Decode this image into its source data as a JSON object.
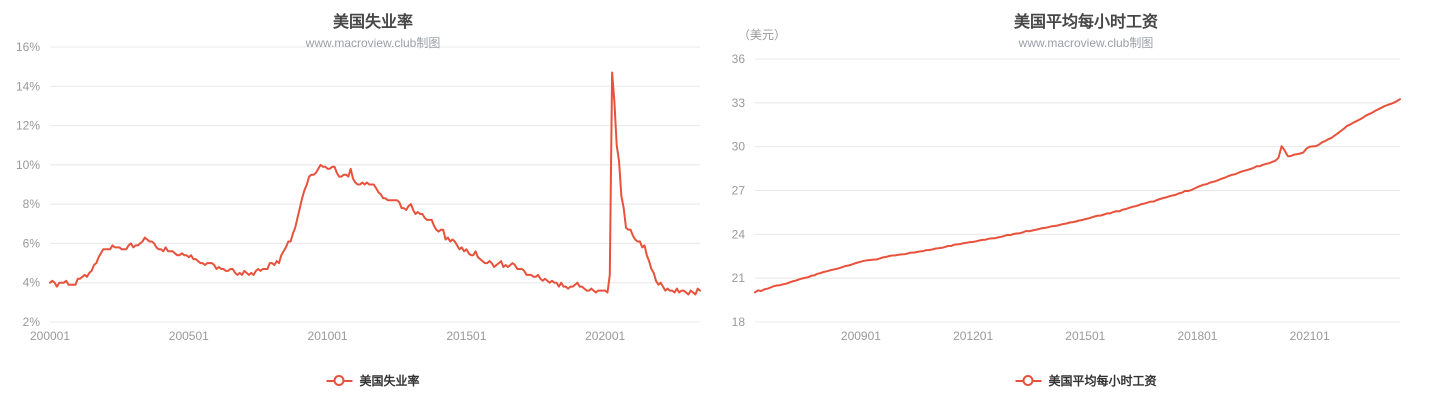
{
  "page": {
    "background": "#ffffff"
  },
  "colors": {
    "line": "#e8523c",
    "grid_line": "#e8e8e8",
    "axis_label": "#999999",
    "title": "#464646",
    "subtitle": "#9aa0a6",
    "legend_text": "#333333"
  },
  "chart_data": [
    {
      "type": "line",
      "title": "美国失业率",
      "subtitle": "www.macroview.club制图",
      "legend": "美国失业率",
      "unit_label": "",
      "line_color": "#e8523c",
      "grid": true,
      "legend_position": "bottom-center",
      "ylim": [
        2,
        16
      ],
      "y_tick_values": [
        2,
        4,
        6,
        8,
        10,
        12,
        14,
        16
      ],
      "y_tick_labels": [
        "2%",
        "4%",
        "6%",
        "8%",
        "10%",
        "12%",
        "14%",
        "16%"
      ],
      "x_start": "2000-01",
      "x_freq": "monthly",
      "x_tick_labels": [
        "200001",
        "200501",
        "201001",
        "201501",
        "202001"
      ],
      "values": [
        4.0,
        4.1,
        4.0,
        3.8,
        4.0,
        4.0,
        4.0,
        4.1,
        3.9,
        3.9,
        3.9,
        3.9,
        4.2,
        4.2,
        4.3,
        4.4,
        4.3,
        4.5,
        4.6,
        4.9,
        5.0,
        5.3,
        5.5,
        5.7,
        5.7,
        5.7,
        5.7,
        5.9,
        5.8,
        5.8,
        5.8,
        5.7,
        5.7,
        5.7,
        5.9,
        6.0,
        5.8,
        5.9,
        5.9,
        6.0,
        6.1,
        6.3,
        6.2,
        6.1,
        6.1,
        6.0,
        5.8,
        5.7,
        5.7,
        5.6,
        5.8,
        5.6,
        5.6,
        5.6,
        5.5,
        5.4,
        5.4,
        5.5,
        5.4,
        5.4,
        5.3,
        5.4,
        5.2,
        5.2,
        5.1,
        5.0,
        5.0,
        4.9,
        5.0,
        5.0,
        5.0,
        4.9,
        4.7,
        4.8,
        4.7,
        4.7,
        4.6,
        4.6,
        4.7,
        4.7,
        4.5,
        4.4,
        4.5,
        4.4,
        4.6,
        4.5,
        4.4,
        4.5,
        4.4,
        4.6,
        4.7,
        4.6,
        4.7,
        4.7,
        4.7,
        5.0,
        5.0,
        4.9,
        5.1,
        5.0,
        5.4,
        5.6,
        5.8,
        6.1,
        6.1,
        6.5,
        6.8,
        7.3,
        7.8,
        8.3,
        8.7,
        9.0,
        9.4,
        9.5,
        9.5,
        9.6,
        9.8,
        10.0,
        9.9,
        9.9,
        9.8,
        9.8,
        9.9,
        9.9,
        9.6,
        9.4,
        9.4,
        9.5,
        9.5,
        9.4,
        9.8,
        9.3,
        9.1,
        9.0,
        9.0,
        9.1,
        9.0,
        9.1,
        9.0,
        9.0,
        9.0,
        8.8,
        8.6,
        8.5,
        8.3,
        8.3,
        8.2,
        8.2,
        8.2,
        8.2,
        8.2,
        8.1,
        7.8,
        7.8,
        7.7,
        7.9,
        8.0,
        7.7,
        7.5,
        7.6,
        7.5,
        7.5,
        7.3,
        7.2,
        7.2,
        7.2,
        6.9,
        6.7,
        6.6,
        6.7,
        6.7,
        6.2,
        6.3,
        6.1,
        6.2,
        6.1,
        5.9,
        5.7,
        5.8,
        5.6,
        5.7,
        5.5,
        5.4,
        5.4,
        5.6,
        5.3,
        5.2,
        5.1,
        5.0,
        5.0,
        5.1,
        5.0,
        4.8,
        4.9,
        5.0,
        5.1,
        4.8,
        4.9,
        4.8,
        4.9,
        5.0,
        4.9,
        4.7,
        4.7,
        4.7,
        4.6,
        4.4,
        4.4,
        4.4,
        4.3,
        4.3,
        4.4,
        4.2,
        4.1,
        4.2,
        4.1,
        4.0,
        4.1,
        4.0,
        4.0,
        3.8,
        4.0,
        3.8,
        3.8,
        3.7,
        3.8,
        3.8,
        3.9,
        4.0,
        3.8,
        3.8,
        3.7,
        3.6,
        3.6,
        3.7,
        3.6,
        3.5,
        3.6,
        3.6,
        3.6,
        3.6,
        3.5,
        4.4,
        14.7,
        13.2,
        11.0,
        10.2,
        8.4,
        7.8,
        6.8,
        6.7,
        6.7,
        6.4,
        6.2,
        6.1,
        6.1,
        5.8,
        5.9,
        5.4,
        5.1,
        4.7,
        4.5,
        4.1,
        3.9,
        4.0,
        3.8,
        3.6,
        3.7,
        3.6,
        3.6,
        3.5,
        3.7,
        3.5,
        3.6,
        3.6,
        3.5,
        3.4,
        3.6,
        3.5,
        3.4,
        3.7,
        3.6
      ]
    },
    {
      "type": "line",
      "title": "美国平均每小时工资",
      "subtitle": "www.macroview.club制图",
      "legend": "美国平均每小时工资",
      "unit_label": "（美元）",
      "line_color": "#e8523c",
      "grid": true,
      "legend_position": "bottom-center",
      "ylim": [
        18,
        36
      ],
      "y_tick_values": [
        18,
        21,
        24,
        27,
        30,
        33,
        36
      ],
      "y_tick_labels": [
        "18",
        "21",
        "24",
        "27",
        "30",
        "33",
        "36"
      ],
      "x_start": "2006-03",
      "x_freq": "monthly",
      "x_tick_labels": [
        "200901",
        "201201",
        "201501",
        "201801",
        "202101"
      ],
      "values": [
        20.04,
        20.16,
        20.12,
        20.23,
        20.28,
        20.36,
        20.45,
        20.5,
        20.52,
        20.58,
        20.62,
        20.7,
        20.78,
        20.83,
        20.9,
        20.97,
        21.02,
        21.06,
        21.16,
        21.19,
        21.3,
        21.35,
        21.42,
        21.47,
        21.53,
        21.58,
        21.63,
        21.68,
        21.75,
        21.83,
        21.87,
        21.93,
        22.01,
        22.07,
        22.13,
        22.19,
        22.22,
        22.24,
        22.27,
        22.28,
        22.34,
        22.42,
        22.45,
        22.51,
        22.55,
        22.56,
        22.6,
        22.63,
        22.64,
        22.69,
        22.75,
        22.75,
        22.79,
        22.83,
        22.85,
        22.92,
        22.93,
        22.97,
        23.03,
        23.05,
        23.08,
        23.14,
        23.2,
        23.21,
        23.3,
        23.31,
        23.34,
        23.4,
        23.43,
        23.47,
        23.48,
        23.52,
        23.58,
        23.62,
        23.63,
        23.7,
        23.72,
        23.73,
        23.79,
        23.83,
        23.89,
        23.96,
        23.95,
        24.02,
        24.06,
        24.08,
        24.14,
        24.23,
        24.21,
        24.26,
        24.3,
        24.36,
        24.41,
        24.44,
        24.48,
        24.54,
        24.57,
        24.6,
        24.66,
        24.71,
        24.74,
        24.81,
        24.84,
        24.88,
        24.95,
        24.98,
        25.04,
        25.09,
        25.16,
        25.22,
        25.28,
        25.28,
        25.36,
        25.43,
        25.43,
        25.53,
        25.58,
        25.58,
        25.69,
        25.73,
        25.81,
        25.88,
        25.92,
        25.98,
        26.07,
        26.1,
        26.17,
        26.24,
        26.25,
        26.35,
        26.42,
        26.49,
        26.53,
        26.61,
        26.66,
        26.7,
        26.8,
        26.85,
        26.97,
        26.96,
        27.03,
        27.13,
        27.23,
        27.32,
        27.4,
        27.44,
        27.54,
        27.59,
        27.66,
        27.74,
        27.83,
        27.9,
        27.99,
        28.07,
        28.11,
        28.2,
        28.29,
        28.35,
        28.41,
        28.47,
        28.55,
        28.66,
        28.66,
        28.76,
        28.82,
        28.87,
        28.96,
        29.04,
        29.24,
        30.03,
        29.73,
        29.35,
        29.36,
        29.45,
        29.49,
        29.53,
        29.61,
        29.87,
        29.99,
        30.02,
        30.04,
        30.14,
        30.3,
        30.39,
        30.51,
        30.6,
        30.76,
        30.91,
        31.07,
        31.23,
        31.42,
        31.51,
        31.64,
        31.74,
        31.85,
        31.97,
        32.12,
        32.22,
        32.32,
        32.45,
        32.56,
        32.66,
        32.77,
        32.85,
        32.93,
        33.01,
        33.12,
        33.25
      ]
    }
  ]
}
